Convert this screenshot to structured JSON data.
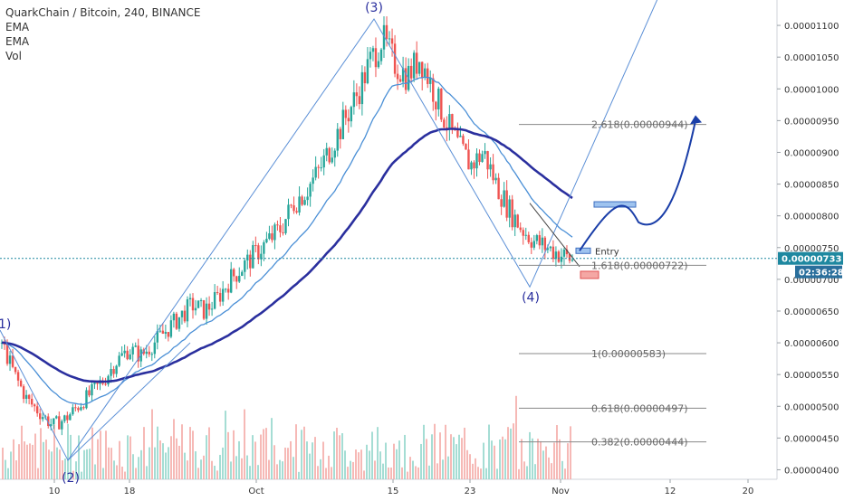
{
  "chart_data": {
    "type": "candlestick",
    "title": "QuarkChain / Bitcoin, 240, BINANCE",
    "indicators": [
      "EMA",
      "EMA",
      "Vol"
    ],
    "y_axis": {
      "ticks": [
        "0.00001100",
        "0.00001050",
        "0.00001000",
        "0.00000950",
        "0.00000900",
        "0.00000850",
        "0.00000800",
        "0.00000750",
        "0.00000700",
        "0.00000650",
        "0.00000600",
        "0.00000550",
        "0.00000500",
        "0.00000450",
        "0.00000400"
      ],
      "range": [
        3.85e-06,
        1.14e-05
      ]
    },
    "x_axis": {
      "ticks": [
        "10",
        "18",
        "Oct",
        "15",
        "23",
        "Nov",
        "12",
        "20"
      ]
    },
    "current_price": "0.00000733",
    "countdown": "02:36:28",
    "last_label_price": 7.33e-06,
    "waves": [
      {
        "label": "1)",
        "price": 6.2e-06
      },
      {
        "label": "(2)",
        "price": 4.15e-06
      },
      {
        "label": "(3)",
        "price": 1.11e-05
      },
      {
        "label": "(4)",
        "price": 6.88e-06
      }
    ],
    "fib_levels": [
      {
        "label": "2.618(0.00000944)",
        "price": 9.44e-06
      },
      {
        "label": "1.618(0.00000722)",
        "price": 7.22e-06
      },
      {
        "label": "1(0.00000583)",
        "price": 5.83e-06
      },
      {
        "label": "0.618(0.00000497)",
        "price": 4.97e-06
      },
      {
        "label": "0.382(0.00000444)",
        "price": 4.44e-06
      }
    ],
    "entry_label": "Entry",
    "colors": {
      "up": "#26a69a",
      "down": "#ef5350",
      "ema_fast": "#4a8fd6",
      "ema_slow": "#2a2f9e",
      "trendline": "#5b8fd6",
      "fib": "#888888",
      "price_tag": "#1e88a0",
      "countdown_tag": "#2a6f9c",
      "vol_up": "#8ed4c9",
      "vol_down": "#f4a7a4"
    },
    "close_series": [
      6e-06,
      5.5e-06,
      5.1e-06,
      4.9e-06,
      4.7e-06,
      4.8e-06,
      5e-06,
      5.2e-06,
      5.4e-06,
      5.7e-06,
      5.9e-06,
      5.8e-06,
      6e-06,
      6.2e-06,
      6.4e-06,
      6.6e-06,
      6.5e-06,
      6.7e-06,
      7e-06,
      7.2e-06,
      7.4e-06,
      7.6e-06,
      7.8e-06,
      8.2e-06,
      8.4e-06,
      8.7e-06,
      9.1e-06,
      9.5e-06,
      9.9e-06,
      1.04e-05,
      1.08e-05,
      1.04e-05,
      1.02e-05,
      1.05e-05,
      1e-05,
      9.5e-06,
      9.1e-06,
      8.8e-06,
      9e-06,
      8.5e-06,
      8.1e-06,
      7.8e-06,
      7.6e-06,
      7.5e-06,
      7.4e-06,
      7.3e-06
    ]
  }
}
